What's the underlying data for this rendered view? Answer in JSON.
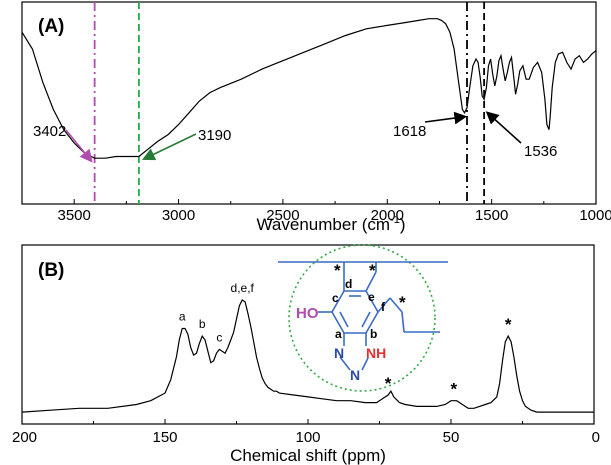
{
  "chart_data": [
    {
      "panel_label": "(A)",
      "type": "line",
      "xlabel": "Wavenumber (cm",
      "xlabel_superscript": "-1",
      "xlabel_close": ")",
      "ylabel": "",
      "xlim": [
        3750,
        1000
      ],
      "x_reversed": true,
      "y_ticks_shown": false,
      "grid": false,
      "xticks": [
        "3500",
        "3000",
        "2500",
        "2000",
        "1500",
        "1000"
      ],
      "series": [
        {
          "color": "#000000",
          "x": [
            3750,
            3700,
            3650,
            3600,
            3550,
            3500,
            3450,
            3402,
            3350,
            3300,
            3250,
            3190,
            3150,
            3100,
            3050,
            3000,
            2950,
            2900,
            2850,
            2800,
            2700,
            2600,
            2500,
            2400,
            2300,
            2200,
            2100,
            2000,
            1900,
            1850,
            1800,
            1780,
            1760,
            1740,
            1720,
            1700,
            1680,
            1660,
            1640,
            1630,
            1618,
            1605,
            1590,
            1575,
            1565,
            1555,
            1545,
            1536,
            1525,
            1515,
            1505,
            1495,
            1485,
            1475,
            1465,
            1455,
            1445,
            1435,
            1425,
            1415,
            1405,
            1395,
            1385,
            1375,
            1365,
            1350,
            1335,
            1320,
            1300,
            1280,
            1260,
            1245,
            1235,
            1225,
            1220,
            1210,
            1195,
            1180,
            1160,
            1140,
            1120,
            1100,
            1080,
            1060,
            1040,
            1020,
            1000
          ],
          "values": [
            0.88,
            0.78,
            0.58,
            0.42,
            0.3,
            0.22,
            0.16,
            0.13,
            0.13,
            0.14,
            0.14,
            0.14,
            0.18,
            0.23,
            0.27,
            0.33,
            0.4,
            0.47,
            0.52,
            0.55,
            0.6,
            0.66,
            0.71,
            0.76,
            0.81,
            0.86,
            0.9,
            0.92,
            0.94,
            0.95,
            0.96,
            0.96,
            0.96,
            0.95,
            0.93,
            0.88,
            0.78,
            0.6,
            0.42,
            0.4,
            0.43,
            0.55,
            0.68,
            0.72,
            0.7,
            0.61,
            0.5,
            0.48,
            0.55,
            0.68,
            0.72,
            0.63,
            0.56,
            0.62,
            0.71,
            0.74,
            0.66,
            0.59,
            0.64,
            0.7,
            0.73,
            0.62,
            0.51,
            0.57,
            0.65,
            0.68,
            0.6,
            0.6,
            0.67,
            0.7,
            0.64,
            0.48,
            0.33,
            0.3,
            0.37,
            0.55,
            0.7,
            0.75,
            0.76,
            0.7,
            0.66,
            0.72,
            0.74,
            0.7,
            0.72,
            0.75,
            0.77
          ]
        }
      ],
      "reference_lines": [
        {
          "x": 3402,
          "color": "#b04cb0",
          "style": "dash-dot"
        },
        {
          "x": 3190,
          "color": "#22aa44",
          "style": "dash"
        },
        {
          "x": 1618,
          "color": "#000000",
          "style": "dash-dot"
        },
        {
          "x": 1536,
          "color": "#000000",
          "style": "dash"
        }
      ],
      "annotations": [
        {
          "text": "3402",
          "target_x": 3402,
          "arrow_color": "#b04cb0"
        },
        {
          "text": "3190",
          "target_x": 3190,
          "arrow_color": "#2a7a3a"
        },
        {
          "text": "1618",
          "target_x": 1618,
          "arrow_color": "#000000"
        },
        {
          "text": "1536",
          "target_x": 1536,
          "arrow_color": "#000000"
        }
      ]
    },
    {
      "panel_label": "(B)",
      "type": "line",
      "xlabel": "Chemical shift (ppm)",
      "ylabel": "",
      "xlim": [
        200,
        0
      ],
      "x_reversed": true,
      "y_ticks_shown": false,
      "grid": false,
      "xticks": [
        "200",
        "150",
        "100",
        "50",
        "0"
      ],
      "series": [
        {
          "color": "#000000",
          "x": [
            200,
            190,
            180,
            170,
            160,
            155,
            150,
            148,
            146,
            145,
            144,
            143,
            142,
            141,
            140,
            139,
            138,
            137,
            136,
            135,
            134,
            133,
            132,
            131,
            130,
            129,
            128,
            127,
            126,
            125,
            124,
            123,
            122,
            121,
            120,
            119,
            118,
            117,
            116,
            115,
            114,
            113,
            112,
            111,
            110,
            105,
            100,
            95,
            90,
            85,
            80,
            76,
            74,
            72,
            71,
            70,
            68,
            66,
            62,
            58,
            55,
            52,
            50,
            48,
            46,
            44,
            42,
            40,
            38,
            36,
            34,
            33,
            32,
            31,
            30,
            29,
            28,
            27,
            26,
            25,
            24,
            22,
            20,
            15,
            10,
            5,
            0
          ],
          "values": [
            0.01,
            0.02,
            0.03,
            0.03,
            0.05,
            0.07,
            0.11,
            0.18,
            0.3,
            0.39,
            0.45,
            0.45,
            0.42,
            0.35,
            0.31,
            0.32,
            0.37,
            0.41,
            0.39,
            0.33,
            0.27,
            0.28,
            0.32,
            0.34,
            0.33,
            0.32,
            0.35,
            0.39,
            0.43,
            0.5,
            0.57,
            0.6,
            0.59,
            0.53,
            0.46,
            0.38,
            0.3,
            0.24,
            0.19,
            0.16,
            0.14,
            0.13,
            0.12,
            0.12,
            0.11,
            0.1,
            0.09,
            0.08,
            0.07,
            0.07,
            0.06,
            0.06,
            0.08,
            0.1,
            0.12,
            0.09,
            0.06,
            0.05,
            0.04,
            0.04,
            0.04,
            0.05,
            0.07,
            0.07,
            0.05,
            0.03,
            0.03,
            0.04,
            0.05,
            0.06,
            0.09,
            0.16,
            0.28,
            0.38,
            0.41,
            0.38,
            0.3,
            0.2,
            0.12,
            0.07,
            0.04,
            0.02,
            0.01,
            0.01,
            0.01,
            0.01,
            0.01
          ]
        }
      ],
      "peak_labels": [
        {
          "text": "a",
          "x": 144
        },
        {
          "text": "b",
          "x": 137
        },
        {
          "text": "c",
          "x": 131
        },
        {
          "text": "d,e,f",
          "x": 123
        },
        {
          "text": "*",
          "x": 72
        },
        {
          "text": "*",
          "x": 49
        },
        {
          "text": "*",
          "x": 30
        }
      ],
      "structure_inset": {
        "substituent_left": "HO",
        "ring_atoms": [
          "a",
          "b",
          "c",
          "d",
          "e",
          "f"
        ],
        "stars": [
          "*",
          "*",
          "*"
        ],
        "triazole_n1": "N",
        "triazole_n2": "N",
        "triazole_nh": "NH",
        "colors": {
          "bonds": "#3a6cc4",
          "ho": "#b04cb0",
          "nitrogen": "#2a4aa8",
          "nh": "#e03030",
          "circle": "#33aa44"
        }
      }
    }
  ]
}
